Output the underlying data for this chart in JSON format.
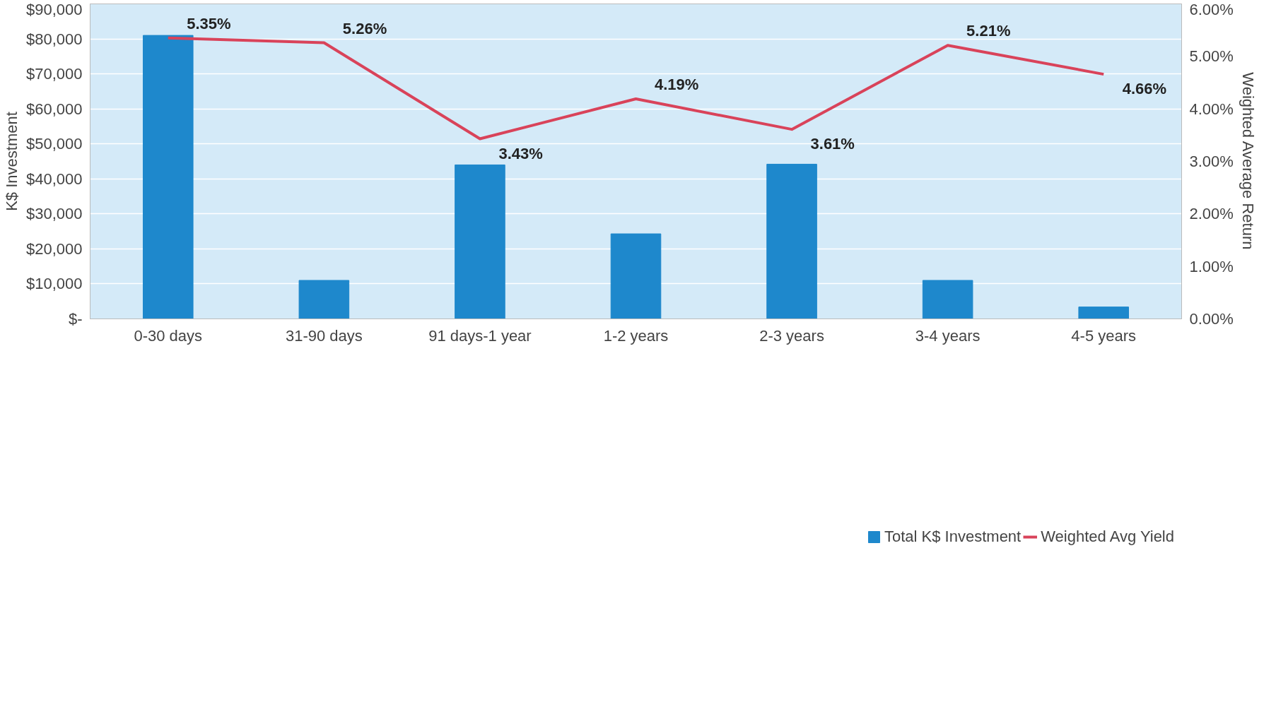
{
  "chart_data": {
    "type": "bar",
    "categories": [
      "0-30 days",
      "31-90 days",
      "91 days-1 year",
      "1-2 years",
      "2-3 years",
      "3-4 years",
      "4-5 years"
    ],
    "ylabel": "K$ Investment",
    "y2label": "Weighted Average Return",
    "ylim": [
      0,
      90000
    ],
    "yticks": [
      {
        "value": 0,
        "label": "$-"
      },
      {
        "value": 10000,
        "label": "$10,000"
      },
      {
        "value": 20000,
        "label": "$20,000"
      },
      {
        "value": 30000,
        "label": "$30,000"
      },
      {
        "value": 40000,
        "label": "$40,000"
      },
      {
        "value": 50000,
        "label": "$50,000"
      },
      {
        "value": 60000,
        "label": "$60,000"
      },
      {
        "value": 70000,
        "label": "$70,000"
      },
      {
        "value": 80000,
        "label": "$80,000"
      },
      {
        "value": 90000,
        "label": "$90,000"
      }
    ],
    "y2lim": [
      0,
      6
    ],
    "y2ticks": [
      {
        "value": 0,
        "label": "0.00%"
      },
      {
        "value": 1,
        "label": "1.00%"
      },
      {
        "value": 2,
        "label": "2.00%"
      },
      {
        "value": 3,
        "label": "3.00%"
      },
      {
        "value": 4,
        "label": "4.00%"
      },
      {
        "value": 5,
        "label": "5.00%"
      },
      {
        "value": 6,
        "label": "6.00%"
      }
    ],
    "series": [
      {
        "name": "Total K$ Investment",
        "color": "#1e88cc",
        "values": [
          81000,
          11000,
          44000,
          24300,
          44200,
          11000,
          3400
        ]
      },
      {
        "name": "Weighted Avg Yield",
        "type": "line",
        "axis": "y2",
        "color": "#d9435a",
        "values": [
          5.35,
          5.26,
          3.43,
          4.19,
          3.61,
          5.21,
          4.66
        ],
        "value_labels": [
          "5.35%",
          "5.26%",
          "3.43%",
          "4.19%",
          "3.61%",
          "5.21%",
          "4.66%"
        ]
      }
    ],
    "grid": "y",
    "legend": "bottom"
  }
}
